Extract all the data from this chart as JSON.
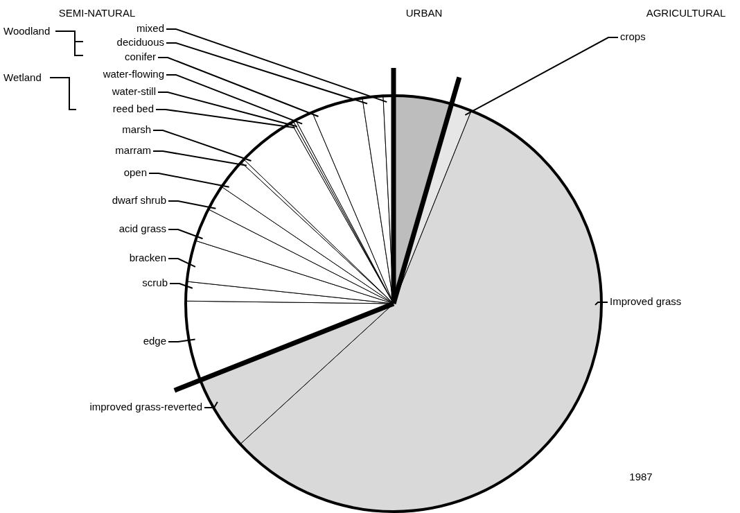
{
  "chart_data": {
    "type": "pie",
    "categories": [
      null,
      "crops",
      "Improved grass",
      "improved grass-reverted",
      "edge",
      "scrub",
      "bracken",
      "acid grass",
      "dwarf shrub",
      "open",
      "marram",
      "marsh",
      "reed bed",
      "water-still",
      "water-flowing",
      "conifer",
      "deciduous",
      "mixed"
    ],
    "values": [
      4.5,
      1.6,
      57.1,
      5.8,
      6.2,
      1.5,
      3.2,
      2.6,
      2.0,
      2.4,
      0.3,
      4.6,
      0.2,
      0.2,
      1.4,
      4.0,
      1.6,
      0.8
    ],
    "colors": [
      "#bdbdbd",
      "#e6e6e6",
      "#d9d9d9",
      "#d9d9d9",
      "#ffffff",
      "#ffffff",
      "#ffffff",
      "#ffffff",
      "#ffffff",
      "#ffffff",
      "#ffffff",
      "#ffffff",
      "#ffffff",
      "#ffffff",
      "#ffffff",
      "#ffffff",
      "#ffffff",
      "#ffffff"
    ],
    "annotations": [
      "SEMI-NATURAL",
      "URBAN",
      "AGRICULTURAL",
      "Woodland",
      "Wetland",
      "1987"
    ]
  }
}
